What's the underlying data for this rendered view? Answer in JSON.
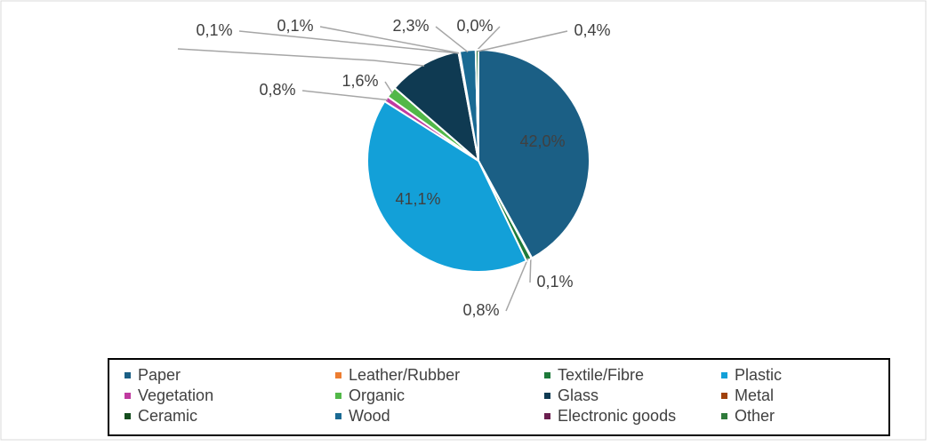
{
  "chart_data": {
    "type": "pie",
    "categories": [
      "Paper",
      "Leather/Rubber",
      "Textile/Fibre",
      "Plastic",
      "Vegetation",
      "Organic",
      "Glass",
      "Metal",
      "Ceramic",
      "Wood",
      "Electronic goods",
      "Other"
    ],
    "values": [
      42.0,
      0.1,
      0.8,
      41.1,
      0.8,
      1.6,
      10.7,
      0.1,
      0.1,
      2.3,
      0.0,
      0.4
    ],
    "value_labels": [
      "42,0%",
      "0,1%",
      "0,8%",
      "41,1%",
      "0,8%",
      "1,6%",
      null,
      "0,1%",
      "0,1%",
      "2,3%",
      "0,0%",
      "0,4%"
    ],
    "colors": [
      "#1b5f85",
      "#ed7d31",
      "#1e7a3a",
      "#13a0d8",
      "#c03aa0",
      "#52b848",
      "#0f3a52",
      "#a0410d",
      "#154d1e",
      "#1a6a93",
      "#6b1f4f",
      "#2f7b3b"
    ],
    "legend": "bottom"
  }
}
